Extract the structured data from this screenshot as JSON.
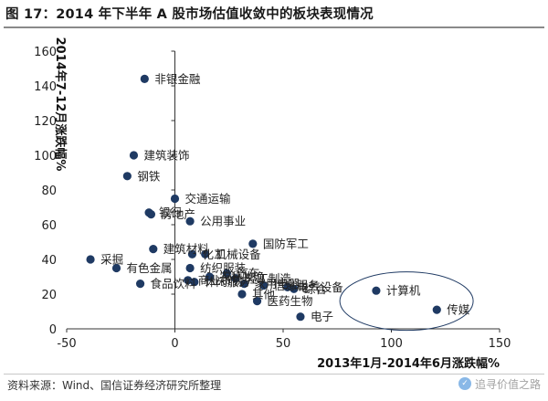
{
  "figure": {
    "title": "图 17：2014 年下半年 A 股市场估值收敛中的板块表现情况",
    "source": "资料来源：Wind、国信证券经济研究所整理",
    "watermark": "追寻价值之路"
  },
  "colors": {
    "marker": "#1f3a63",
    "axis": "#333333",
    "ellipse": "#1f3a63"
  },
  "chart_data": {
    "type": "scatter",
    "title": "",
    "xlabel": "2013年1月-2014年6月涨跌幅%",
    "ylabel": "2014年7-12月涨跌幅%",
    "xlim": [
      -50,
      150
    ],
    "ylim": [
      0,
      160
    ],
    "xticks": [
      -50,
      0,
      50,
      100,
      150
    ],
    "yticks": [
      0,
      20,
      40,
      60,
      80,
      100,
      120,
      140,
      160
    ],
    "grid": false,
    "annotation": "ellipse enclosing 计算机 and 传媒",
    "points": [
      {
        "label": "非银金融",
        "x": -14,
        "y": 144
      },
      {
        "label": "建筑装饰",
        "x": -19,
        "y": 100
      },
      {
        "label": "钢铁",
        "x": -22,
        "y": 88
      },
      {
        "label": "交通运输",
        "x": 0,
        "y": 75
      },
      {
        "label": "银行",
        "x": -12,
        "y": 67
      },
      {
        "label": "房地产",
        "x": -11,
        "y": 66
      },
      {
        "label": "公用事业",
        "x": 7,
        "y": 62
      },
      {
        "label": "国防军工",
        "x": 36,
        "y": 49
      },
      {
        "label": "建筑材料",
        "x": -10,
        "y": 46
      },
      {
        "label": "化工",
        "x": 8,
        "y": 43
      },
      {
        "label": "机械设备",
        "x": 14,
        "y": 43
      },
      {
        "label": "采掘",
        "x": -39,
        "y": 40
      },
      {
        "label": "有色金属",
        "x": -27,
        "y": 35
      },
      {
        "label": "纺织服装",
        "x": 7,
        "y": 35
      },
      {
        "label": "汽车",
        "x": 24,
        "y": 32
      },
      {
        "label": "农林牧渔",
        "x": 16,
        "y": 30
      },
      {
        "label": "轻工制造",
        "x": 28,
        "y": 29
      },
      {
        "label": "食品饮料",
        "x": -16,
        "y": 26
      },
      {
        "label": "商业贸易",
        "x": 6,
        "y": 28
      },
      {
        "label": "休闲服务",
        "x": 9,
        "y": 27
      },
      {
        "label": "家用电器",
        "x": 32,
        "y": 26
      },
      {
        "label": "信息服务",
        "x": 41,
        "y": 25
      },
      {
        "label": "电气设备",
        "x": 52,
        "y": 24
      },
      {
        "label": "综合",
        "x": 55,
        "y": 23
      },
      {
        "label": "其他",
        "x": 31,
        "y": 20
      },
      {
        "label": "医药生物",
        "x": 38,
        "y": 16
      },
      {
        "label": "电子",
        "x": 58,
        "y": 7
      },
      {
        "label": "计算机",
        "x": 93,
        "y": 22
      },
      {
        "label": "传媒",
        "x": 121,
        "y": 11
      }
    ]
  }
}
